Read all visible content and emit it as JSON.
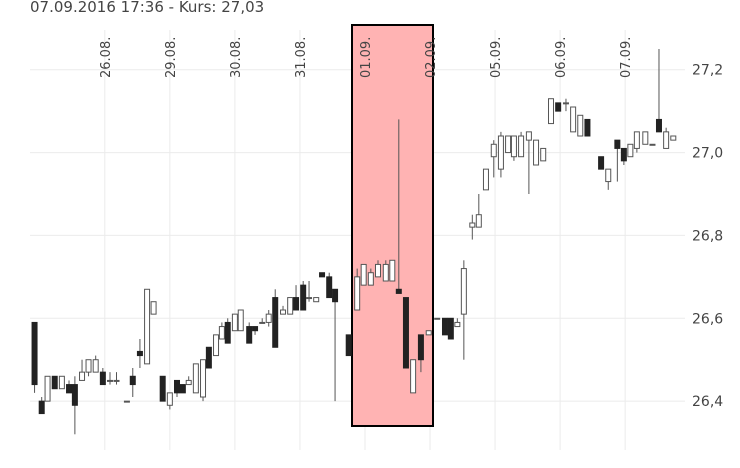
{
  "chart_data": {
    "type": "candlestick",
    "title": "07.09.2016 17:36 - Kurs: 27,03",
    "x": [
      -1.08,
      -0.97,
      -0.88,
      -0.77,
      -0.66,
      -0.55,
      -0.46,
      -0.35,
      -0.25,
      -0.14,
      -0.03,
      0.08,
      0.18,
      0.34,
      0.43,
      0.54,
      0.65,
      0.75,
      0.89,
      1.0,
      1.11,
      1.2,
      1.29,
      1.4,
      1.51,
      1.6,
      1.71,
      1.8,
      1.89,
      2.0,
      2.09,
      2.22,
      2.31,
      2.42,
      2.52,
      2.62,
      2.74,
      2.85,
      2.94,
      3.05,
      3.14,
      3.25,
      3.34,
      3.45,
      3.54,
      3.75,
      3.88,
      3.98,
      4.09,
      4.2,
      4.32,
      4.42,
      4.52,
      4.63,
      4.74,
      4.86,
      4.98,
      5.11,
      5.23,
      5.32,
      5.42,
      5.52,
      5.65,
      5.75,
      5.86,
      5.98,
      6.09,
      6.2,
      6.29,
      6.4,
      6.52,
      6.63,
      6.74,
      6.86,
      6.97,
      7.09,
      7.2,
      7.31,
      7.42,
      7.63,
      7.74,
      7.88,
      7.98,
      8.08,
      8.18,
      8.31,
      8.42,
      8.52,
      8.63,
      8.74
    ],
    "open": [
      26.59,
      26.4,
      26.4,
      26.46,
      26.43,
      26.44,
      26.44,
      26.45,
      26.47,
      26.47,
      26.47,
      26.45,
      26.45,
      26.4,
      26.46,
      26.52,
      26.49,
      26.61,
      26.46,
      26.39,
      26.45,
      26.44,
      26.44,
      26.42,
      26.41,
      26.53,
      26.51,
      26.55,
      26.59,
      26.57,
      26.57,
      26.58,
      26.58,
      26.59,
      26.59,
      26.65,
      26.61,
      26.61,
      26.65,
      26.68,
      26.65,
      26.64,
      26.71,
      26.7,
      26.67,
      26.56,
      26.62,
      26.68,
      26.68,
      26.7,
      26.69,
      26.69,
      26.67,
      26.65,
      26.42,
      26.56,
      26.56,
      26.6,
      26.6,
      26.6,
      26.58,
      26.61,
      26.82,
      26.82,
      26.91,
      26.99,
      26.96,
      27.0,
      26.99,
      26.99,
      27.03,
      26.97,
      26.98,
      27.07,
      27.12,
      27.12,
      27.05,
      27.04,
      27.08,
      26.99,
      26.93,
      27.03,
      27.01,
      26.99,
      27.01,
      27.02,
      27.02,
      27.08,
      27.01,
      27.03
    ],
    "high": [
      26.59,
      26.41,
      26.46,
      26.46,
      26.46,
      26.45,
      26.46,
      26.5,
      26.5,
      26.51,
      26.48,
      26.47,
      26.47,
      26.4,
      26.48,
      26.55,
      26.67,
      26.64,
      26.46,
      26.42,
      26.45,
      26.44,
      26.46,
      26.49,
      26.5,
      26.53,
      26.56,
      26.59,
      26.6,
      26.61,
      26.62,
      26.59,
      26.58,
      26.6,
      26.62,
      26.67,
      26.63,
      26.65,
      26.68,
      26.69,
      26.69,
      26.65,
      26.71,
      26.71,
      26.67,
      26.56,
      26.72,
      26.73,
      26.72,
      26.74,
      26.74,
      26.74,
      27.08,
      26.65,
      26.5,
      26.56,
      26.57,
      26.6,
      26.6,
      26.6,
      26.6,
      26.74,
      26.85,
      26.9,
      26.96,
      27.03,
      27.05,
      27.04,
      27.04,
      27.05,
      27.05,
      27.03,
      27.01,
      27.13,
      27.12,
      27.13,
      27.11,
      27.09,
      27.08,
      26.99,
      26.96,
      27.03,
      27.01,
      27.02,
      27.05,
      27.05,
      27.02,
      27.25,
      27.06,
      27.04
    ],
    "low": [
      26.42,
      26.37,
      26.4,
      26.43,
      26.43,
      26.42,
      26.32,
      26.45,
      26.46,
      26.47,
      26.44,
      26.44,
      26.44,
      26.4,
      26.41,
      26.48,
      26.49,
      26.61,
      26.4,
      26.38,
      26.41,
      26.42,
      26.44,
      26.42,
      26.4,
      26.48,
      26.51,
      26.55,
      26.54,
      26.57,
      26.57,
      26.54,
      26.56,
      26.59,
      26.58,
      26.53,
      26.61,
      26.61,
      26.62,
      26.62,
      26.64,
      26.64,
      26.7,
      26.65,
      26.4,
      26.51,
      26.62,
      26.68,
      26.68,
      26.7,
      26.69,
      26.69,
      26.66,
      26.48,
      26.42,
      26.47,
      26.56,
      26.6,
      26.56,
      26.55,
      26.58,
      26.5,
      26.79,
      26.82,
      26.91,
      26.94,
      26.94,
      27.0,
      26.98,
      26.99,
      26.9,
      26.97,
      26.98,
      27.07,
      27.1,
      27.1,
      27.05,
      27.04,
      27.04,
      26.96,
      26.91,
      26.93,
      26.97,
      26.99,
      27.0,
      27.02,
      27.02,
      27.05,
      27.01,
      27.03
    ],
    "close": [
      26.44,
      26.37,
      26.46,
      26.43,
      26.46,
      26.42,
      26.39,
      26.47,
      26.5,
      26.5,
      26.44,
      26.45,
      26.45,
      26.4,
      26.44,
      26.51,
      26.67,
      26.64,
      26.4,
      26.42,
      26.42,
      26.42,
      26.45,
      26.49,
      26.5,
      26.48,
      26.56,
      26.58,
      26.54,
      26.61,
      26.62,
      26.54,
      26.57,
      26.59,
      26.61,
      26.53,
      26.62,
      26.65,
      26.62,
      26.62,
      26.65,
      26.65,
      26.7,
      26.65,
      26.64,
      26.51,
      26.7,
      26.73,
      26.71,
      26.73,
      26.73,
      26.74,
      26.66,
      26.48,
      26.5,
      26.5,
      26.57,
      26.6,
      26.56,
      26.55,
      26.59,
      26.72,
      26.83,
      26.85,
      26.96,
      27.02,
      27.04,
      27.04,
      27.04,
      27.04,
      27.05,
      27.03,
      27.01,
      27.13,
      27.1,
      27.12,
      27.11,
      27.09,
      27.04,
      26.96,
      26.96,
      27.01,
      26.98,
      27.02,
      27.05,
      27.05,
      27.02,
      27.05,
      27.05,
      27.04
    ],
    "up_color": "#ffffff",
    "down_color": "#222222",
    "wick_color": "#555555",
    "xlim": [
      -1.15,
      8.92
    ],
    "xticks": [
      {
        "value": 0,
        "label": "26.08."
      },
      {
        "value": 1,
        "label": "29.08."
      },
      {
        "value": 2,
        "label": "30.08."
      },
      {
        "value": 3,
        "label": "31.08."
      },
      {
        "value": 4,
        "label": "01.09."
      },
      {
        "value": 5,
        "label": "02.09."
      },
      {
        "value": 6,
        "label": "05.09."
      },
      {
        "value": 7,
        "label": "06.09."
      },
      {
        "value": 8,
        "label": "07.09."
      }
    ],
    "ylim": [
      26.27,
      27.32
    ],
    "yticks": [
      {
        "value": 26.4,
        "label": "26,4"
      },
      {
        "value": 26.6,
        "label": "26,6"
      },
      {
        "value": 26.8,
        "label": "26,8"
      },
      {
        "value": 27.0,
        "label": "27,0"
      },
      {
        "value": 27.2,
        "label": "27,2"
      }
    ],
    "grid": true
  }
}
